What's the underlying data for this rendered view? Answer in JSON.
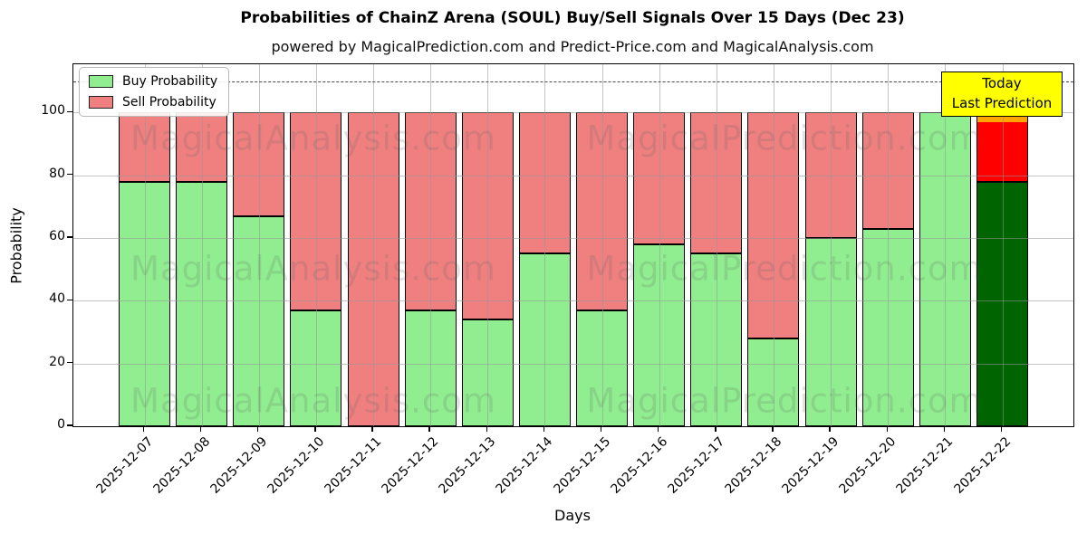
{
  "figure": {
    "watermark_left": "MagicalAnalysis.com",
    "watermark_right": "MagicalPrediction.com"
  },
  "chart_data": {
    "type": "bar",
    "stacked": true,
    "title": "Probabilities of ChainZ Arena (SOUL) Buy/Sell Signals Over 15 Days (Dec 23)",
    "subtitle": "powered by MagicalPrediction.com and Predict-Price.com and MagicalAnalysis.com",
    "xlabel": "Days",
    "ylabel": "Probability",
    "ylim": [
      0,
      115.4
    ],
    "yticks": [
      0,
      20,
      40,
      60,
      80,
      100
    ],
    "dashed_line_y": 110,
    "grid": true,
    "legend_position": "upper left",
    "categories": [
      "2025-12-07",
      "2025-12-08",
      "2025-12-09",
      "2025-12-10",
      "2025-12-11",
      "2025-12-12",
      "2025-12-13",
      "2025-12-14",
      "2025-12-15",
      "2025-12-16",
      "2025-12-17",
      "2025-12-18",
      "2025-12-19",
      "2025-12-20",
      "2025-12-21",
      "2025-12-22"
    ],
    "series": [
      {
        "name": "Buy Probability",
        "color": "#90EE90",
        "values": [
          78,
          78,
          67,
          37,
          0,
          37,
          34,
          55,
          37,
          58,
          55,
          28,
          60,
          63,
          100,
          78
        ]
      },
      {
        "name": "Sell Probability",
        "color": "#F08080",
        "values": [
          22,
          22,
          33,
          63,
          100,
          63,
          66,
          45,
          63,
          42,
          45,
          72,
          40,
          37,
          0,
          22
        ]
      }
    ],
    "today_bar": {
      "category": "2025-12-22",
      "buy_color": "#006400",
      "sell_color": "#FF0000",
      "cap_color": "#FFA500"
    },
    "annotation": {
      "line1": "Today",
      "line2": "Last Prediction",
      "bg": "#FFFF00"
    }
  }
}
